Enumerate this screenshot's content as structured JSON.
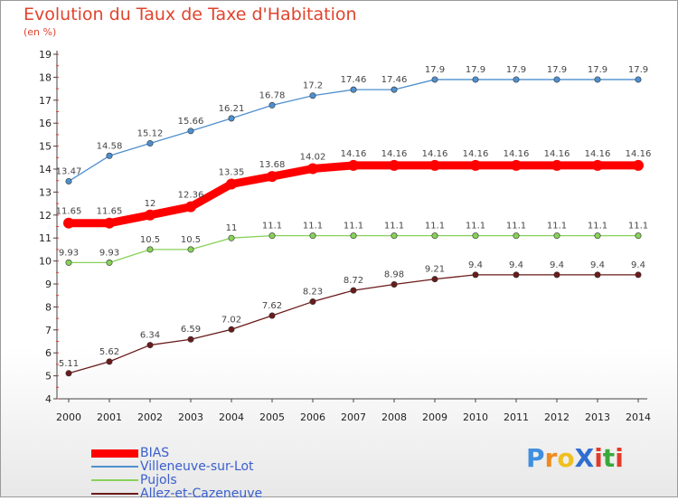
{
  "title": "Evolution du Taux de Taxe d'Habitation",
  "subtitle": "(en %)",
  "chart_data": {
    "type": "line",
    "x": [
      2000,
      2001,
      2002,
      2003,
      2004,
      2005,
      2006,
      2007,
      2008,
      2009,
      2010,
      2011,
      2012,
      2013,
      2014
    ],
    "ylim": [
      4,
      19
    ],
    "yticks": [
      4,
      5,
      6,
      7,
      8,
      9,
      10,
      11,
      12,
      13,
      14,
      15,
      16,
      17,
      18,
      19
    ],
    "grid": false,
    "legend_position": "bottom-left",
    "series": [
      {
        "name": "Villeneuve-sur-Lot",
        "color": "#4f8fcf",
        "values": [
          13.47,
          14.58,
          15.12,
          15.66,
          16.21,
          16.78,
          17.2,
          17.46,
          17.46,
          17.9,
          17.9,
          17.9,
          17.9,
          17.9,
          17.9
        ]
      },
      {
        "name": "Pujols",
        "color": "#88d15a",
        "values": [
          9.93,
          9.93,
          10.5,
          10.5,
          11,
          11.1,
          11.1,
          11.1,
          11.1,
          11.1,
          11.1,
          11.1,
          11.1,
          11.1,
          11.1
        ]
      },
      {
        "name": "Allez-et-Cazeneuve",
        "color": "#6b1b1b",
        "values": [
          5.11,
          5.62,
          6.34,
          6.59,
          7.02,
          7.62,
          8.23,
          8.72,
          8.98,
          9.21,
          9.4,
          9.4,
          9.4,
          9.4,
          9.4
        ]
      },
      {
        "name": "BIAS",
        "color": "#ff0000",
        "values": [
          11.65,
          11.65,
          12,
          12.36,
          13.35,
          13.68,
          14.02,
          14.16,
          14.16,
          14.16,
          14.16,
          14.16,
          14.16,
          14.16,
          14.16
        ]
      }
    ]
  },
  "legend": {
    "items": [
      {
        "label": "BIAS",
        "color": "#ff0000"
      },
      {
        "label": "Villeneuve-sur-Lot",
        "color": "#4f8fcf"
      },
      {
        "label": "Pujols",
        "color": "#88d15a"
      },
      {
        "label": "Allez-et-Cazeneuve",
        "color": "#6b1b1b"
      }
    ]
  },
  "logo": {
    "letters": [
      {
        "ch": "P",
        "color": "#3f8fe0"
      },
      {
        "ch": "r",
        "color": "#f08a1c"
      },
      {
        "ch": "o",
        "color": "#f0c020"
      },
      {
        "ch": "X",
        "color": "#2f6fd0"
      },
      {
        "ch": "i",
        "color": "#e23a2a"
      },
      {
        "ch": "t",
        "color": "#3aa83a"
      },
      {
        "ch": "i",
        "color": "#e23a2a"
      }
    ]
  }
}
